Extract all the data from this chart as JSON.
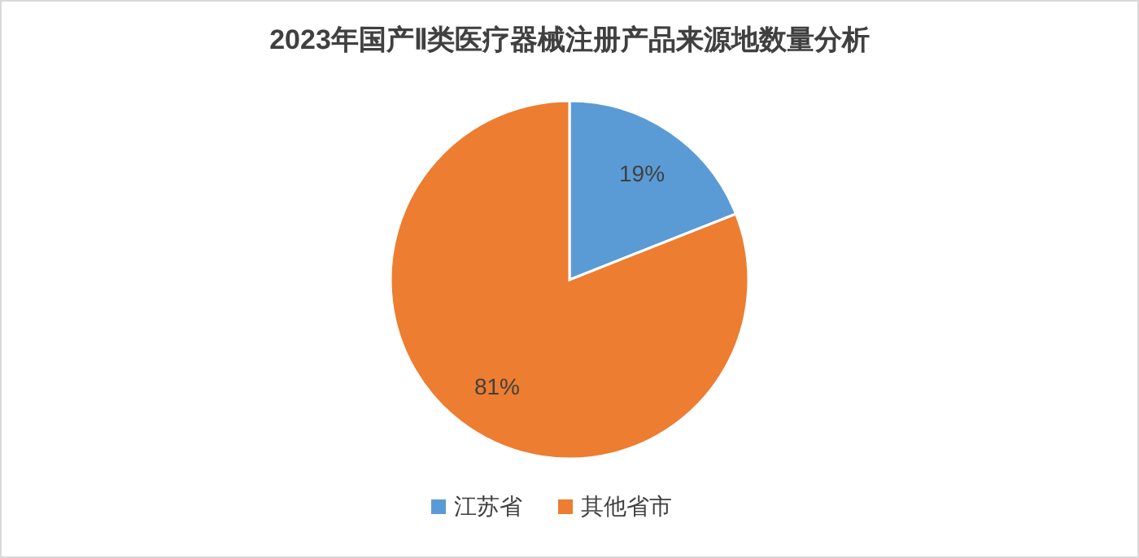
{
  "chart_data": {
    "type": "pie",
    "title": "2023年国产Ⅱ类医疗器械注册产品来源地数量分析",
    "categories": [
      "江苏省",
      "其他省市"
    ],
    "values": [
      19,
      81
    ],
    "colors": [
      "#5b9bd5",
      "#ed7d31"
    ],
    "value_labels": [
      "19%",
      "81%"
    ],
    "legend": "bottom"
  }
}
